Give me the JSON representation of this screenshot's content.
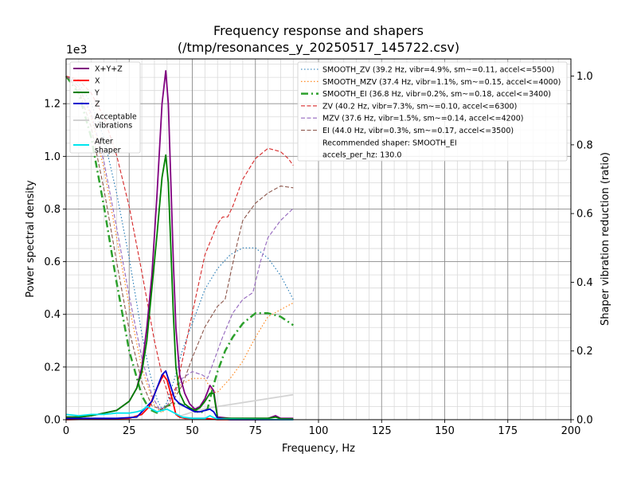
{
  "chart_data": {
    "type": "line",
    "title_line1": "Frequency response and shapers",
    "title_line2": "(/tmp/resonances_y_20250517_145722.csv)",
    "xlabel": "Frequency, Hz",
    "ylabel": "Power spectral density",
    "ylabel_right": "Shaper vibration reduction (ratio)",
    "y_multiplier": "1e3",
    "xlim": [
      0,
      200
    ],
    "ylim": [
      0,
      1.37
    ],
    "ylim_right": [
      0,
      1.05
    ],
    "grid": true,
    "x_ticks": [
      "0",
      "25",
      "50",
      "75",
      "100",
      "125",
      "150",
      "175",
      "200"
    ],
    "y_ticks": [
      "0.0",
      "0.2",
      "0.4",
      "0.6",
      "0.8",
      "1.0",
      "1.2"
    ],
    "y_ticks_right": [
      "0.0",
      "0.2",
      "0.4",
      "0.6",
      "0.8",
      "1.0"
    ],
    "legend_left": {
      "placement": "top-left",
      "entries": [
        {
          "label": "X+Y+Z",
          "color": "#800080",
          "style": "solid"
        },
        {
          "label": "X",
          "color": "#ff0000",
          "style": "solid"
        },
        {
          "label": "Y",
          "color": "#008000",
          "style": "solid"
        },
        {
          "label": "Z",
          "color": "#0000cd",
          "style": "solid"
        },
        {
          "label": "Acceptable\nvibrations",
          "color": "#d3d3d3",
          "style": "solid"
        },
        {
          "label": "After\nshaper",
          "color": "#00e5ee",
          "style": "solid"
        }
      ]
    },
    "legend_right": {
      "placement": "top-right",
      "entries": [
        {
          "label": "SMOOTH_ZV (39.2 Hz, vibr=4.9%, sm~=0.11, accel<=5500)",
          "color": "#1f77b4",
          "style": "dotted"
        },
        {
          "label": "SMOOTH_MZV (37.4 Hz, vibr=1.1%, sm~=0.15, accel<=4000)",
          "color": "#ff7f0e",
          "style": "dotted"
        },
        {
          "label": "SMOOTH_EI (36.8 Hz, vibr=0.2%, sm~=0.18, accel<=3400)",
          "color": "#2ca02c",
          "style": "dashdot"
        },
        {
          "label": "ZV (40.2 Hz, vibr=7.3%, sm~=0.10, accel<=6300)",
          "color": "#d62728",
          "style": "dashed"
        },
        {
          "label": "MZV (37.6 Hz, vibr=1.5%, sm~=0.14, accel<=4200)",
          "color": "#9467bd",
          "style": "dashed"
        },
        {
          "label": "EI (44.0 Hz, vibr=0.3%, sm~=0.17, accel<=3500)",
          "color": "#8c564b",
          "style": "dashed"
        },
        {
          "label": "Recommended shaper: SMOOTH_EI",
          "color": "",
          "style": "none"
        },
        {
          "label": "accels_per_hz: 130.0",
          "color": "",
          "style": "none"
        }
      ]
    },
    "series_psd": [
      {
        "name": "X+Y+Z",
        "color": "#800080",
        "points": [
          [
            0,
            0.01
          ],
          [
            5,
            0.01
          ],
          [
            10,
            0.015
          ],
          [
            15,
            0.025
          ],
          [
            20,
            0.035
          ],
          [
            25,
            0.07
          ],
          [
            28,
            0.12
          ],
          [
            30,
            0.2
          ],
          [
            32,
            0.35
          ],
          [
            34,
            0.55
          ],
          [
            36,
            0.85
          ],
          [
            38,
            1.2
          ],
          [
            39.5,
            1.325
          ],
          [
            40.5,
            1.2
          ],
          [
            41.5,
            0.9
          ],
          [
            42.5,
            0.6
          ],
          [
            43.5,
            0.35
          ],
          [
            45,
            0.17
          ],
          [
            47,
            0.1
          ],
          [
            49,
            0.06
          ],
          [
            51,
            0.04
          ],
          [
            53,
            0.05
          ],
          [
            55,
            0.08
          ],
          [
            57,
            0.13
          ],
          [
            58.5,
            0.11
          ],
          [
            60,
            0.01
          ],
          [
            65,
            0.005
          ],
          [
            70,
            0.005
          ],
          [
            80,
            0.005
          ],
          [
            83,
            0.015
          ],
          [
            85,
            0.005
          ],
          [
            90,
            0.005
          ]
        ]
      },
      {
        "name": "X",
        "color": "#ff0000",
        "points": [
          [
            0,
            0.0
          ],
          [
            25,
            0.005
          ],
          [
            30,
            0.02
          ],
          [
            33,
            0.05
          ],
          [
            36,
            0.12
          ],
          [
            38.5,
            0.17
          ],
          [
            40,
            0.15
          ],
          [
            42,
            0.08
          ],
          [
            43.5,
            0.02
          ],
          [
            45,
            0.01
          ],
          [
            47,
            0.005
          ],
          [
            50,
            0.005
          ],
          [
            55,
            0.005
          ],
          [
            60,
            0.0
          ],
          [
            90,
            0.0
          ]
        ]
      },
      {
        "name": "Y",
        "color": "#008000",
        "points": [
          [
            0,
            0.01
          ],
          [
            5,
            0.01
          ],
          [
            10,
            0.015
          ],
          [
            15,
            0.025
          ],
          [
            20,
            0.035
          ],
          [
            25,
            0.07
          ],
          [
            28,
            0.12
          ],
          [
            30,
            0.18
          ],
          [
            32,
            0.3
          ],
          [
            34,
            0.5
          ],
          [
            36,
            0.7
          ],
          [
            38,
            0.92
          ],
          [
            39.5,
            1.005
          ],
          [
            40.5,
            0.9
          ],
          [
            41.5,
            0.65
          ],
          [
            42.5,
            0.4
          ],
          [
            43.5,
            0.2
          ],
          [
            45,
            0.1
          ],
          [
            47,
            0.06
          ],
          [
            49,
            0.045
          ],
          [
            51,
            0.035
          ],
          [
            53,
            0.045
          ],
          [
            55,
            0.07
          ],
          [
            57,
            0.1
          ],
          [
            58.5,
            0.1
          ],
          [
            60,
            0.005
          ],
          [
            65,
            0.005
          ],
          [
            80,
            0.005
          ],
          [
            83,
            0.01
          ],
          [
            85,
            0.003
          ],
          [
            90,
            0.003
          ]
        ]
      },
      {
        "name": "Z",
        "color": "#0000cd",
        "points": [
          [
            0,
            0.005
          ],
          [
            20,
            0.005
          ],
          [
            25,
            0.008
          ],
          [
            28,
            0.01
          ],
          [
            30,
            0.03
          ],
          [
            32,
            0.05
          ],
          [
            34,
            0.07
          ],
          [
            36,
            0.12
          ],
          [
            38,
            0.17
          ],
          [
            39.5,
            0.185
          ],
          [
            41,
            0.14
          ],
          [
            43,
            0.08
          ],
          [
            45,
            0.06
          ],
          [
            47,
            0.05
          ],
          [
            49,
            0.04
          ],
          [
            51,
            0.03
          ],
          [
            53,
            0.03
          ],
          [
            55,
            0.035
          ],
          [
            57,
            0.04
          ],
          [
            58.5,
            0.03
          ],
          [
            60,
            0.005
          ],
          [
            65,
            0.0
          ],
          [
            90,
            0.0
          ]
        ]
      },
      {
        "name": "After shaper",
        "color": "#00e5ee",
        "points": [
          [
            0,
            0.02
          ],
          [
            5,
            0.015
          ],
          [
            10,
            0.02
          ],
          [
            15,
            0.02
          ],
          [
            20,
            0.025
          ],
          [
            25,
            0.025
          ],
          [
            28,
            0.03
          ],
          [
            30,
            0.035
          ],
          [
            32,
            0.05
          ],
          [
            34,
            0.04
          ],
          [
            36,
            0.03
          ],
          [
            38,
            0.035
          ],
          [
            40,
            0.04
          ],
          [
            42,
            0.03
          ],
          [
            44,
            0.02
          ],
          [
            46,
            0.01
          ],
          [
            50,
            0.005
          ],
          [
            55,
            0.005
          ],
          [
            57,
            0.015
          ],
          [
            58,
            0.01
          ],
          [
            60,
            0.002
          ],
          [
            90,
            0.0
          ]
        ]
      },
      {
        "name": "Acceptable vibrations",
        "color": "#d3d3d3",
        "points": [
          [
            44,
            0.01
          ],
          [
            52,
            0.035
          ],
          [
            60,
            0.05
          ],
          [
            90,
            0.095
          ]
        ]
      }
    ],
    "series_shapers": [
      {
        "name": "SMOOTH_ZV",
        "color": "#1f77b4",
        "style": "dotted",
        "points": [
          [
            0,
            1.0
          ],
          [
            5,
            0.98
          ],
          [
            10,
            0.92
          ],
          [
            15,
            0.82
          ],
          [
            20,
            0.66
          ],
          [
            25,
            0.47
          ],
          [
            30,
            0.25
          ],
          [
            33,
            0.14
          ],
          [
            36,
            0.06
          ],
          [
            38,
            0.03
          ],
          [
            40,
            0.05
          ],
          [
            43,
            0.12
          ],
          [
            46,
            0.2
          ],
          [
            50,
            0.28
          ],
          [
            55,
            0.38
          ],
          [
            60,
            0.44
          ],
          [
            65,
            0.48
          ],
          [
            70,
            0.5
          ],
          [
            75,
            0.5
          ],
          [
            80,
            0.47
          ],
          [
            85,
            0.42
          ],
          [
            90,
            0.35
          ]
        ]
      },
      {
        "name": "SMOOTH_MZV",
        "color": "#ff7f0e",
        "style": "dotted",
        "points": [
          [
            0,
            1.0
          ],
          [
            5,
            0.97
          ],
          [
            10,
            0.88
          ],
          [
            15,
            0.73
          ],
          [
            20,
            0.53
          ],
          [
            25,
            0.33
          ],
          [
            30,
            0.15
          ],
          [
            35,
            0.04
          ],
          [
            38,
            0.02
          ],
          [
            42,
            0.06
          ],
          [
            45,
            0.1
          ],
          [
            50,
            0.12
          ],
          [
            55,
            0.12
          ],
          [
            58,
            0.08
          ],
          [
            60,
            0.08
          ],
          [
            65,
            0.12
          ],
          [
            70,
            0.17
          ],
          [
            75,
            0.24
          ],
          [
            80,
            0.3
          ],
          [
            85,
            0.32
          ],
          [
            90,
            0.34
          ]
        ]
      },
      {
        "name": "SMOOTH_EI",
        "color": "#2ca02c",
        "style": "dashdot",
        "points": [
          [
            0,
            1.0
          ],
          [
            5,
            0.95
          ],
          [
            10,
            0.82
          ],
          [
            15,
            0.62
          ],
          [
            20,
            0.4
          ],
          [
            25,
            0.2
          ],
          [
            30,
            0.07
          ],
          [
            33,
            0.03
          ],
          [
            36,
            0.02
          ],
          [
            40,
            0.04
          ],
          [
            44,
            0.05
          ],
          [
            47,
            0.04
          ],
          [
            50,
            0.03
          ],
          [
            53,
            0.02
          ],
          [
            56,
            0.03
          ],
          [
            58,
            0.09
          ],
          [
            60,
            0.14
          ],
          [
            63,
            0.2
          ],
          [
            66,
            0.24
          ],
          [
            70,
            0.28
          ],
          [
            75,
            0.31
          ],
          [
            80,
            0.31
          ],
          [
            85,
            0.3
          ],
          [
            90,
            0.275
          ]
        ]
      },
      {
        "name": "ZV",
        "color": "#d62728",
        "style": "dashed",
        "points": [
          [
            0,
            1.0
          ],
          [
            5,
            0.99
          ],
          [
            10,
            0.95
          ],
          [
            15,
            0.88
          ],
          [
            20,
            0.77
          ],
          [
            25,
            0.62
          ],
          [
            30,
            0.43
          ],
          [
            35,
            0.23
          ],
          [
            38,
            0.13
          ],
          [
            41,
            0.06
          ],
          [
            44,
            0.1
          ],
          [
            46,
            0.17
          ],
          [
            50,
            0.31
          ],
          [
            55,
            0.48
          ],
          [
            60,
            0.57
          ],
          [
            62,
            0.59
          ],
          [
            64,
            0.59
          ],
          [
            66,
            0.62
          ],
          [
            70,
            0.7
          ],
          [
            75,
            0.76
          ],
          [
            80,
            0.79
          ],
          [
            85,
            0.78
          ],
          [
            88,
            0.76
          ],
          [
            90,
            0.74
          ]
        ]
      },
      {
        "name": "MZV",
        "color": "#9467bd",
        "style": "dashed",
        "points": [
          [
            0,
            1.0
          ],
          [
            5,
            0.97
          ],
          [
            10,
            0.89
          ],
          [
            15,
            0.75
          ],
          [
            20,
            0.56
          ],
          [
            25,
            0.36
          ],
          [
            30,
            0.18
          ],
          [
            34,
            0.07
          ],
          [
            37,
            0.03
          ],
          [
            40,
            0.04
          ],
          [
            43,
            0.08
          ],
          [
            46,
            0.12
          ],
          [
            50,
            0.14
          ],
          [
            54,
            0.13
          ],
          [
            56,
            0.12
          ],
          [
            58,
            0.16
          ],
          [
            62,
            0.24
          ],
          [
            66,
            0.31
          ],
          [
            70,
            0.35
          ],
          [
            74,
            0.37
          ],
          [
            77,
            0.46
          ],
          [
            80,
            0.53
          ],
          [
            85,
            0.58
          ],
          [
            90,
            0.615
          ]
        ]
      },
      {
        "name": "EI",
        "color": "#8c564b",
        "style": "dashed",
        "points": [
          [
            0,
            1.0
          ],
          [
            5,
            0.96
          ],
          [
            10,
            0.85
          ],
          [
            15,
            0.67
          ],
          [
            20,
            0.46
          ],
          [
            25,
            0.26
          ],
          [
            30,
            0.11
          ],
          [
            34,
            0.04
          ],
          [
            38,
            0.03
          ],
          [
            42,
            0.05
          ],
          [
            46,
            0.1
          ],
          [
            50,
            0.18
          ],
          [
            55,
            0.27
          ],
          [
            60,
            0.33
          ],
          [
            63,
            0.35
          ],
          [
            65,
            0.42
          ],
          [
            68,
            0.52
          ],
          [
            70,
            0.58
          ],
          [
            75,
            0.63
          ],
          [
            80,
            0.66
          ],
          [
            85,
            0.68
          ],
          [
            90,
            0.675
          ]
        ]
      }
    ]
  }
}
